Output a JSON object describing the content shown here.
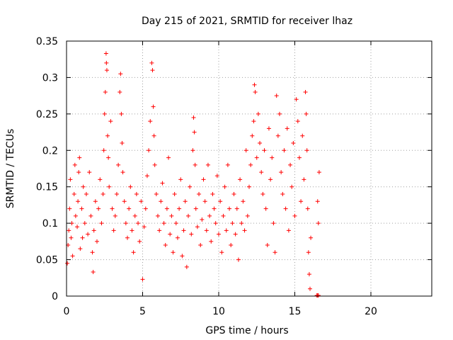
{
  "chart_data": {
    "type": "scatter",
    "title": "Day 215 of 2021, SRMTID for receiver lhaz",
    "xlabel": "GPS time / hours",
    "ylabel": "SRMTID / TECUs",
    "xlim": [
      0,
      24
    ],
    "ylim": [
      0,
      0.35
    ],
    "xticks": [
      "0",
      "5",
      "10",
      "15",
      "20"
    ],
    "yticks": [
      "0",
      "0.05",
      "0.1",
      "0.15",
      "0.2",
      "0.25",
      "0.3",
      "0.35"
    ],
    "grid": true,
    "marker": "+",
    "colors": {
      "points": "#ff0000",
      "axes": "#000000",
      "grid": "#a0a0a0"
    },
    "series": [
      {
        "name": "",
        "points": [
          [
            0.05,
            0.045
          ],
          [
            0.1,
            0.07
          ],
          [
            0.15,
            0.09
          ],
          [
            0.2,
            0.12
          ],
          [
            0.25,
            0.16
          ],
          [
            0.3,
            0.08
          ],
          [
            0.35,
            0.1
          ],
          [
            0.4,
            0.055
          ],
          [
            0.5,
            0.14
          ],
          [
            0.55,
            0.18
          ],
          [
            0.6,
            0.11
          ],
          [
            0.7,
            0.095
          ],
          [
            0.75,
            0.13
          ],
          [
            0.8,
            0.17
          ],
          [
            0.85,
            0.19
          ],
          [
            0.9,
            0.065
          ],
          [
            1.0,
            0.12
          ],
          [
            1.05,
            0.08
          ],
          [
            1.1,
            0.15
          ],
          [
            1.2,
            0.1
          ],
          [
            1.3,
            0.14
          ],
          [
            1.4,
            0.085
          ],
          [
            1.5,
            0.17
          ],
          [
            1.6,
            0.11
          ],
          [
            1.7,
            0.06
          ],
          [
            1.75,
            0.033
          ],
          [
            1.8,
            0.09
          ],
          [
            1.9,
            0.13
          ],
          [
            2.0,
            0.075
          ],
          [
            2.1,
            0.12
          ],
          [
            2.2,
            0.16
          ],
          [
            2.3,
            0.1
          ],
          [
            2.4,
            0.14
          ],
          [
            2.45,
            0.2
          ],
          [
            2.5,
            0.25
          ],
          [
            2.55,
            0.28
          ],
          [
            2.6,
            0.333
          ],
          [
            2.62,
            0.32
          ],
          [
            2.65,
            0.31
          ],
          [
            2.7,
            0.22
          ],
          [
            2.75,
            0.19
          ],
          [
            2.8,
            0.15
          ],
          [
            2.9,
            0.24
          ],
          [
            3.0,
            0.12
          ],
          [
            3.1,
            0.09
          ],
          [
            3.2,
            0.11
          ],
          [
            3.3,
            0.14
          ],
          [
            3.4,
            0.18
          ],
          [
            3.5,
            0.28
          ],
          [
            3.55,
            0.305
          ],
          [
            3.6,
            0.25
          ],
          [
            3.65,
            0.21
          ],
          [
            3.7,
            0.17
          ],
          [
            3.8,
            0.13
          ],
          [
            3.9,
            0.1
          ],
          [
            4.0,
            0.08
          ],
          [
            4.1,
            0.12
          ],
          [
            4.2,
            0.15
          ],
          [
            4.3,
            0.09
          ],
          [
            4.4,
            0.06
          ],
          [
            4.5,
            0.11
          ],
          [
            4.6,
            0.14
          ],
          [
            4.7,
            0.1
          ],
          [
            4.8,
            0.075
          ],
          [
            4.9,
            0.13
          ],
          [
            5.0,
            0.023
          ],
          [
            5.1,
            0.095
          ],
          [
            5.2,
            0.12
          ],
          [
            5.3,
            0.165
          ],
          [
            5.4,
            0.2
          ],
          [
            5.5,
            0.24
          ],
          [
            5.6,
            0.32
          ],
          [
            5.65,
            0.31
          ],
          [
            5.7,
            0.26
          ],
          [
            5.75,
            0.22
          ],
          [
            5.8,
            0.18
          ],
          [
            5.9,
            0.14
          ],
          [
            6.0,
            0.11
          ],
          [
            6.1,
            0.09
          ],
          [
            6.2,
            0.13
          ],
          [
            6.3,
            0.155
          ],
          [
            6.4,
            0.1
          ],
          [
            6.5,
            0.07
          ],
          [
            6.6,
            0.12
          ],
          [
            6.7,
            0.19
          ],
          [
            6.8,
            0.085
          ],
          [
            6.9,
            0.11
          ],
          [
            7.0,
            0.06
          ],
          [
            7.1,
            0.14
          ],
          [
            7.2,
            0.1
          ],
          [
            7.3,
            0.08
          ],
          [
            7.4,
            0.12
          ],
          [
            7.5,
            0.16
          ],
          [
            7.6,
            0.055
          ],
          [
            7.7,
            0.09
          ],
          [
            7.8,
            0.13
          ],
          [
            7.9,
            0.04
          ],
          [
            8.0,
            0.11
          ],
          [
            8.1,
            0.15
          ],
          [
            8.2,
            0.085
          ],
          [
            8.3,
            0.2
          ],
          [
            8.35,
            0.245
          ],
          [
            8.4,
            0.225
          ],
          [
            8.45,
            0.18
          ],
          [
            8.5,
            0.12
          ],
          [
            8.6,
            0.095
          ],
          [
            8.7,
            0.14
          ],
          [
            8.8,
            0.07
          ],
          [
            8.9,
            0.105
          ],
          [
            9.0,
            0.16
          ],
          [
            9.1,
            0.13
          ],
          [
            9.2,
            0.09
          ],
          [
            9.3,
            0.18
          ],
          [
            9.4,
            0.11
          ],
          [
            9.5,
            0.075
          ],
          [
            9.6,
            0.14
          ],
          [
            9.7,
            0.12
          ],
          [
            9.8,
            0.1
          ],
          [
            9.9,
            0.165
          ],
          [
            10.0,
            0.085
          ],
          [
            10.1,
            0.13
          ],
          [
            10.2,
            0.06
          ],
          [
            10.3,
            0.11
          ],
          [
            10.4,
            0.15
          ],
          [
            10.5,
            0.09
          ],
          [
            10.6,
            0.18
          ],
          [
            10.7,
            0.12
          ],
          [
            10.8,
            0.07
          ],
          [
            10.9,
            0.1
          ],
          [
            11.0,
            0.14
          ],
          [
            11.1,
            0.085
          ],
          [
            11.2,
            0.12
          ],
          [
            11.3,
            0.05
          ],
          [
            11.4,
            0.16
          ],
          [
            11.5,
            0.1
          ],
          [
            11.6,
            0.13
          ],
          [
            11.7,
            0.09
          ],
          [
            11.8,
            0.2
          ],
          [
            11.9,
            0.11
          ],
          [
            12.0,
            0.15
          ],
          [
            12.1,
            0.18
          ],
          [
            12.2,
            0.22
          ],
          [
            12.3,
            0.24
          ],
          [
            12.35,
            0.29
          ],
          [
            12.4,
            0.28
          ],
          [
            12.5,
            0.19
          ],
          [
            12.6,
            0.25
          ],
          [
            12.7,
            0.21
          ],
          [
            12.8,
            0.17
          ],
          [
            12.9,
            0.14
          ],
          [
            13.0,
            0.2
          ],
          [
            13.1,
            0.12
          ],
          [
            13.2,
            0.07
          ],
          [
            13.3,
            0.23
          ],
          [
            13.4,
            0.16
          ],
          [
            13.5,
            0.19
          ],
          [
            13.6,
            0.1
          ],
          [
            13.7,
            0.06
          ],
          [
            13.8,
            0.275
          ],
          [
            13.9,
            0.22
          ],
          [
            14.0,
            0.25
          ],
          [
            14.1,
            0.17
          ],
          [
            14.2,
            0.14
          ],
          [
            14.3,
            0.2
          ],
          [
            14.4,
            0.12
          ],
          [
            14.5,
            0.23
          ],
          [
            14.6,
            0.09
          ],
          [
            14.7,
            0.18
          ],
          [
            14.8,
            0.15
          ],
          [
            14.9,
            0.21
          ],
          [
            15.0,
            0.11
          ],
          [
            15.1,
            0.27
          ],
          [
            15.2,
            0.24
          ],
          [
            15.3,
            0.19
          ],
          [
            15.4,
            0.13
          ],
          [
            15.5,
            0.22
          ],
          [
            15.6,
            0.16
          ],
          [
            15.7,
            0.28
          ],
          [
            15.75,
            0.25
          ],
          [
            15.8,
            0.2
          ],
          [
            15.85,
            0.12
          ],
          [
            15.9,
            0.06
          ],
          [
            15.95,
            0.03
          ],
          [
            16.0,
            0.01
          ],
          [
            16.05,
            0.08
          ],
          [
            16.5,
            0.13
          ],
          [
            16.55,
            0.1
          ],
          [
            16.6,
            0.17
          ],
          [
            16.45,
            0.001
          ],
          [
            16.5,
            0.001
          ],
          [
            16.55,
            0.001
          ]
        ]
      }
    ]
  }
}
